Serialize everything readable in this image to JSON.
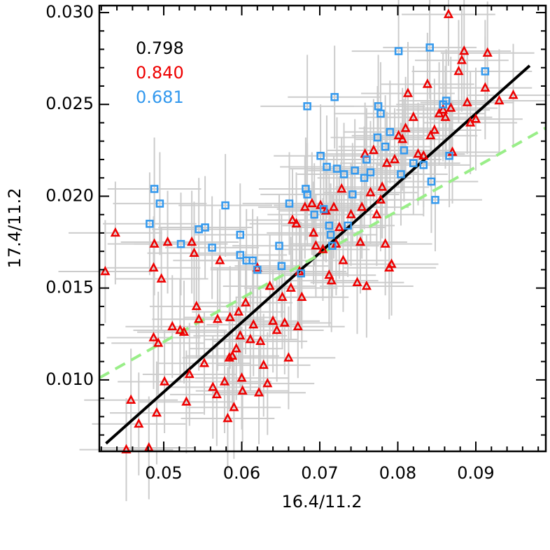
{
  "chart_data": {
    "type": "scatter",
    "xlabel": "16.4/11.2",
    "ylabel": "17.4/11.2",
    "xlim": [
      0.04175,
      0.09897
    ],
    "ylim": [
      0.00611,
      0.03038
    ],
    "xticks": [
      0.05,
      0.06,
      0.07,
      0.08,
      0.09
    ],
    "yticks": [
      {
        "value": 0.01,
        "label": "0.010"
      },
      0.015,
      {
        "value": 0.02,
        "label": "0.020"
      },
      0.025,
      {
        "value": 0.03,
        "label": "0.030"
      }
    ],
    "xminorticks": [
      0.042,
      0.044,
      0.046,
      0.048,
      0.052,
      0.054,
      0.056,
      0.058,
      0.062,
      0.064,
      0.066,
      0.068,
      0.072,
      0.074,
      0.076,
      0.078,
      0.082,
      0.084,
      0.086,
      0.088,
      0.092,
      0.094,
      0.096,
      0.098
    ],
    "yminorticks": [
      0.007,
      0.008,
      0.009,
      0.011,
      0.012,
      0.013,
      0.014,
      0.016,
      0.017,
      0.018,
      0.019,
      0.021,
      0.022,
      0.023,
      0.024,
      0.026,
      0.027,
      0.028,
      0.029
    ],
    "errorbar_color": "#cccccc",
    "series": [
      {
        "color": "#ee0000",
        "marker": "triangle",
        "xerr": 0.006,
        "yerr": 0.0028,
        "x": [
          0.0425,
          0.0438,
          0.0452,
          0.0458,
          0.0468,
          0.0481,
          0.0487,
          0.0488,
          0.0487,
          0.0491,
          0.0493,
          0.0497,
          0.0501,
          0.0505,
          0.0511,
          0.0521,
          0.0526,
          0.0529,
          0.0533,
          0.0536,
          0.0539,
          0.0542,
          0.0545,
          0.0552,
          0.0563,
          0.0568,
          0.0569,
          0.0572,
          0.0578,
          0.0582,
          0.0584,
          0.0585,
          0.0588,
          0.059,
          0.0593,
          0.0596,
          0.0598,
          0.06,
          0.0601,
          0.0605,
          0.0611,
          0.0615,
          0.062,
          0.0622,
          0.0624,
          0.0628,
          0.0633,
          0.0636,
          0.064,
          0.0645,
          0.0652,
          0.0655,
          0.066,
          0.0663,
          0.0665,
          0.067,
          0.0672,
          0.0674,
          0.0677,
          0.0681,
          0.069,
          0.0692,
          0.0695,
          0.0701,
          0.0704,
          0.0708,
          0.0712,
          0.0715,
          0.0718,
          0.0721,
          0.0725,
          0.0728,
          0.073,
          0.074,
          0.0748,
          0.0752,
          0.0754,
          0.0758,
          0.076,
          0.0765,
          0.0769,
          0.0773,
          0.0778,
          0.078,
          0.0784,
          0.0786,
          0.0789,
          0.0792,
          0.0796,
          0.0801,
          0.0806,
          0.081,
          0.0813,
          0.082,
          0.0826,
          0.0833,
          0.0838,
          0.0842,
          0.0847,
          0.0853,
          0.0858,
          0.0861,
          0.0865,
          0.0868,
          0.087,
          0.0878,
          0.0882,
          0.0885,
          0.0889,
          0.0893,
          0.09,
          0.0912,
          0.0915,
          0.093,
          0.0948
        ],
        "values": [
          0.0159,
          0.018,
          0.0062,
          0.0089,
          0.0076,
          0.0063,
          0.0161,
          0.0174,
          0.0123,
          0.0082,
          0.012,
          0.0155,
          0.0099,
          0.0175,
          0.0129,
          0.0127,
          0.0126,
          0.0088,
          0.0103,
          0.0175,
          0.0169,
          0.014,
          0.0133,
          0.0109,
          0.0096,
          0.0092,
          0.0133,
          0.0165,
          0.0099,
          0.0079,
          0.0112,
          0.0134,
          0.0113,
          0.0085,
          0.0117,
          0.0137,
          0.0124,
          0.0101,
          0.0094,
          0.0142,
          0.0122,
          0.013,
          0.0161,
          0.0093,
          0.0121,
          0.0108,
          0.0098,
          0.0151,
          0.0132,
          0.0127,
          0.0145,
          0.0131,
          0.0112,
          0.015,
          0.0187,
          0.0185,
          0.0129,
          0.0159,
          0.0145,
          0.0194,
          0.0196,
          0.018,
          0.0173,
          0.0195,
          0.0171,
          0.0192,
          0.0157,
          0.0154,
          0.0194,
          0.0174,
          0.0183,
          0.0204,
          0.0165,
          0.019,
          0.0153,
          0.0175,
          0.0194,
          0.0223,
          0.0151,
          0.0202,
          0.0225,
          0.019,
          0.0198,
          0.0205,
          0.0174,
          0.0218,
          0.0161,
          0.0163,
          0.022,
          0.0233,
          0.0231,
          0.0237,
          0.0256,
          0.0243,
          0.0223,
          0.0222,
          0.0261,
          0.0233,
          0.0236,
          0.0245,
          0.0247,
          0.0243,
          0.0299,
          0.0248,
          0.0224,
          0.0268,
          0.0274,
          0.0279,
          0.0251,
          0.024,
          0.0242,
          0.0259,
          0.0278,
          0.0252,
          0.0255
        ]
      },
      {
        "color": "#3399ee",
        "marker": "square",
        "xerr": 0.006,
        "yerr": 0.0028,
        "x": [
          0.0482,
          0.0488,
          0.0495,
          0.0522,
          0.0545,
          0.0553,
          0.0562,
          0.0579,
          0.0598,
          0.0598,
          0.0606,
          0.0614,
          0.062,
          0.0648,
          0.0651,
          0.0661,
          0.0676,
          0.0682,
          0.0684,
          0.0684,
          0.0693,
          0.0701,
          0.0705,
          0.0709,
          0.0712,
          0.0714,
          0.0716,
          0.0719,
          0.0722,
          0.0731,
          0.0736,
          0.0742,
          0.0745,
          0.0757,
          0.076,
          0.0765,
          0.0774,
          0.0775,
          0.0778,
          0.0784,
          0.079,
          0.0801,
          0.0804,
          0.0808,
          0.082,
          0.0833,
          0.0841,
          0.0843,
          0.0848,
          0.0858,
          0.0862,
          0.0866,
          0.0912
        ],
        "values": [
          0.0185,
          0.0204,
          0.0196,
          0.0174,
          0.0182,
          0.0183,
          0.0172,
          0.0195,
          0.0179,
          0.0168,
          0.0165,
          0.0165,
          0.016,
          0.0173,
          0.0162,
          0.0196,
          0.0158,
          0.0204,
          0.0201,
          0.0249,
          0.019,
          0.0222,
          0.0193,
          0.0216,
          0.0184,
          0.0179,
          0.0173,
          0.0254,
          0.0215,
          0.0212,
          0.0184,
          0.0201,
          0.0214,
          0.021,
          0.022,
          0.0213,
          0.0232,
          0.0249,
          0.0245,
          0.0227,
          0.0235,
          0.0279,
          0.0212,
          0.0225,
          0.0218,
          0.0217,
          0.0281,
          0.0208,
          0.0198,
          0.025,
          0.0252,
          0.0222,
          0.0268
        ]
      }
    ],
    "fit_lines": [
      {
        "color": "#000000",
        "dashed": false,
        "x": [
          0.0426,
          0.0969
        ],
        "y": [
          0.00654,
          0.02711
        ]
      },
      {
        "color": "#99ee88",
        "dashed": true,
        "x": [
          0.04175,
          0.09897
        ],
        "y": [
          0.01011,
          0.02372
        ]
      }
    ],
    "annotations": [
      {
        "text": "0.798",
        "color": "#000000"
      },
      {
        "text": "0.840",
        "color": "#ee0000"
      },
      {
        "text": "0.681",
        "color": "#3399ee"
      }
    ]
  }
}
